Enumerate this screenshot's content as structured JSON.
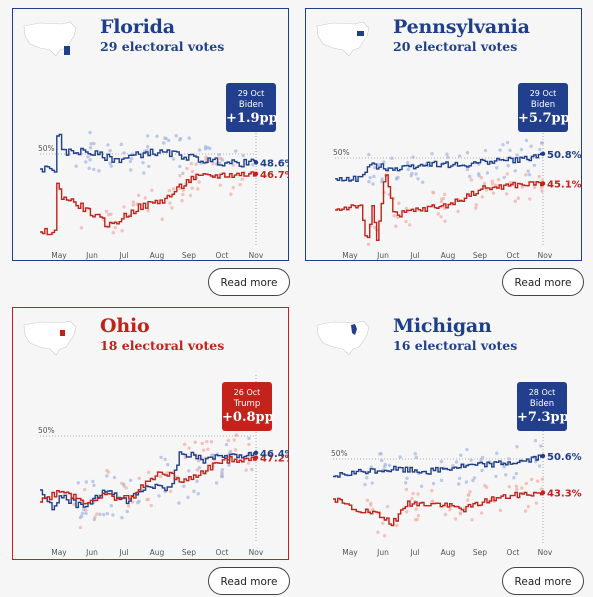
{
  "colors": {
    "biden": "#1f3f8a",
    "trump": "#c1221a",
    "biden_dot": "#a8b8e0",
    "trump_dot": "#f0b0aa"
  },
  "read_more_label": "Read more",
  "fifty_label": "50%",
  "months": [
    "May",
    "Jun",
    "Jul",
    "Aug",
    "Sep",
    "Oct",
    "Nov"
  ],
  "chart_data": [
    {
      "type": "line",
      "state": "Florida",
      "title": "Florida",
      "subtitle": "29 electoral votes",
      "party": "biden",
      "badge": {
        "date": "29 Oct",
        "candidate": "Biden",
        "margin": "+1.9pp"
      },
      "series": [
        {
          "name": "Biden",
          "final_label": "48.6%",
          "final": 48.6
        },
        {
          "name": "Trump",
          "final_label": "46.7%",
          "final": 46.7
        }
      ]
    },
    {
      "type": "line",
      "state": "Pennsylvania",
      "title": "Pennsylvania",
      "subtitle": "20 electoral votes",
      "party": "biden",
      "badge": {
        "date": "29 Oct",
        "candidate": "Biden",
        "margin": "+5.7pp"
      },
      "series": [
        {
          "name": "Biden",
          "final_label": "50.8%",
          "final": 50.8
        },
        {
          "name": "Trump",
          "final_label": "45.1%",
          "final": 45.1
        }
      ]
    },
    {
      "type": "line",
      "state": "Ohio",
      "title": "Ohio",
      "subtitle": "18 electoral votes",
      "party": "trump",
      "badge": {
        "date": "26 Oct",
        "candidate": "Trump",
        "margin": "+0.8pp"
      },
      "series": [
        {
          "name": "Trump",
          "final_label": "47.2%",
          "final": 47.2
        },
        {
          "name": "Biden",
          "final_label": "46.4%",
          "final": 46.4
        }
      ]
    },
    {
      "type": "line",
      "state": "Michigan",
      "title": "Michigan",
      "subtitle": "16 electoral votes",
      "party": "biden",
      "badge": {
        "date": "28 Oct",
        "candidate": "Biden",
        "margin": "+7.3pp"
      },
      "series": [
        {
          "name": "Biden",
          "final_label": "50.6%",
          "final": 50.6
        },
        {
          "name": "Trump",
          "final_label": "43.3%",
          "final": 43.3
        }
      ]
    }
  ]
}
